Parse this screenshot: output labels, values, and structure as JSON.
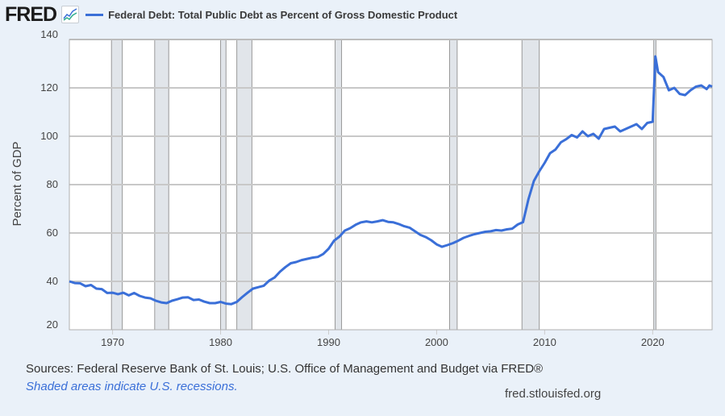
{
  "header": {
    "logo": "FRED",
    "logo_icon": "line-chart-icon",
    "legend_label": "Federal Debt: Total Public Debt as Percent of Gross Domestic Product"
  },
  "footer": {
    "sources": "Sources: Federal Reserve Bank of St. Louis; U.S. Office of Management and Budget via FRED®",
    "note": "Shaded areas indicate U.S. recessions.",
    "url": "fred.stlouisfed.org"
  },
  "colors": {
    "series": "#3a6fd8",
    "recession": "#e1e5ea",
    "grid": "#c8c8c8",
    "background": "#eaf1f9"
  },
  "chart_data": {
    "type": "line",
    "title": "Federal Debt: Total Public Debt as Percent of Gross Domestic Product",
    "xlabel": "",
    "ylabel": "Percent of GDP",
    "xlim": [
      1966.0,
      2025.5
    ],
    "ylim": [
      20,
      140
    ],
    "yticks": [
      20,
      40,
      60,
      80,
      100,
      120,
      140
    ],
    "xticks": [
      1970,
      1980,
      1990,
      2000,
      2010,
      2020
    ],
    "grid": true,
    "legend": "top-left",
    "recessions": [
      [
        1969.9,
        1970.9
      ],
      [
        1973.9,
        1975.2
      ],
      [
        1980.0,
        1980.5
      ],
      [
        1981.5,
        1982.9
      ],
      [
        1990.6,
        1991.2
      ],
      [
        2001.2,
        2001.9
      ],
      [
        2007.9,
        2009.5
      ],
      [
        2020.1,
        2020.3
      ]
    ],
    "series": [
      {
        "name": "Federal Debt: Total Public Debt as Percent of Gross Domestic Product",
        "x": [
          1966.0,
          1966.5,
          1967.0,
          1967.5,
          1968.0,
          1968.5,
          1969.0,
          1969.5,
          1970.0,
          1970.5,
          1971.0,
          1971.5,
          1972.0,
          1972.5,
          1973.0,
          1973.5,
          1974.0,
          1974.5,
          1975.0,
          1975.5,
          1976.0,
          1976.5,
          1977.0,
          1977.5,
          1978.0,
          1978.5,
          1979.0,
          1979.5,
          1980.0,
          1980.5,
          1981.0,
          1981.5,
          1982.0,
          1982.5,
          1983.0,
          1983.5,
          1984.0,
          1984.5,
          1985.0,
          1985.5,
          1986.0,
          1986.5,
          1987.0,
          1987.5,
          1988.0,
          1988.5,
          1989.0,
          1989.5,
          1990.0,
          1990.5,
          1991.0,
          1991.5,
          1992.0,
          1992.5,
          1993.0,
          1993.5,
          1994.0,
          1994.5,
          1995.0,
          1995.5,
          1996.0,
          1996.5,
          1997.0,
          1997.5,
          1998.0,
          1998.5,
          1999.0,
          1999.5,
          2000.0,
          2000.5,
          2001.0,
          2001.5,
          2002.0,
          2002.5,
          2003.0,
          2003.5,
          2004.0,
          2004.5,
          2005.0,
          2005.5,
          2006.0,
          2006.5,
          2007.0,
          2007.5,
          2008.0,
          2008.5,
          2009.0,
          2009.5,
          2010.0,
          2010.5,
          2011.0,
          2011.5,
          2012.0,
          2012.5,
          2013.0,
          2013.5,
          2014.0,
          2014.5,
          2015.0,
          2015.5,
          2016.0,
          2016.5,
          2017.0,
          2017.5,
          2018.0,
          2018.5,
          2019.0,
          2019.5,
          2020.0,
          2020.25,
          2020.5,
          2021.0,
          2021.5,
          2022.0,
          2022.5,
          2023.0,
          2023.5,
          2024.0,
          2024.5,
          2025.0,
          2025.25,
          2025.5
        ],
        "values": [
          40.0,
          39.3,
          39.2,
          38.0,
          38.5,
          37.0,
          36.8,
          35.2,
          35.3,
          34.7,
          35.3,
          34.2,
          35.2,
          34.0,
          33.3,
          33.0,
          32.0,
          31.3,
          31.0,
          32.0,
          32.6,
          33.3,
          33.4,
          32.3,
          32.5,
          31.6,
          31.0,
          31.0,
          31.5,
          30.8,
          30.6,
          31.5,
          33.5,
          35.3,
          37.0,
          37.6,
          38.2,
          40.3,
          41.6,
          44.0,
          45.9,
          47.5,
          48.0,
          48.8,
          49.3,
          49.8,
          50.1,
          51.3,
          53.5,
          56.8,
          58.5,
          61.0,
          62.0,
          63.4,
          64.4,
          64.8,
          64.4,
          64.8,
          65.3,
          64.6,
          64.4,
          63.7,
          62.8,
          62.2,
          60.7,
          59.2,
          58.3,
          57.0,
          55.3,
          54.3,
          55.0,
          55.8,
          56.8,
          58.0,
          58.8,
          59.5,
          60.0,
          60.5,
          60.7,
          61.2,
          61.0,
          61.5,
          61.8,
          63.5,
          64.5,
          74.0,
          81.5,
          85.5,
          89.0,
          93.0,
          94.5,
          97.5,
          98.8,
          100.5,
          99.5,
          102.0,
          100.0,
          101.0,
          99.0,
          103.0,
          103.5,
          104.0,
          102.0,
          103.0,
          104.0,
          105.0,
          103.0,
          105.5,
          106.0,
          133.0,
          126.5,
          124.5,
          119.0,
          120.0,
          117.5,
          117.0,
          119.0,
          120.5,
          121.0,
          119.5,
          121.0,
          120.5
        ]
      }
    ]
  }
}
